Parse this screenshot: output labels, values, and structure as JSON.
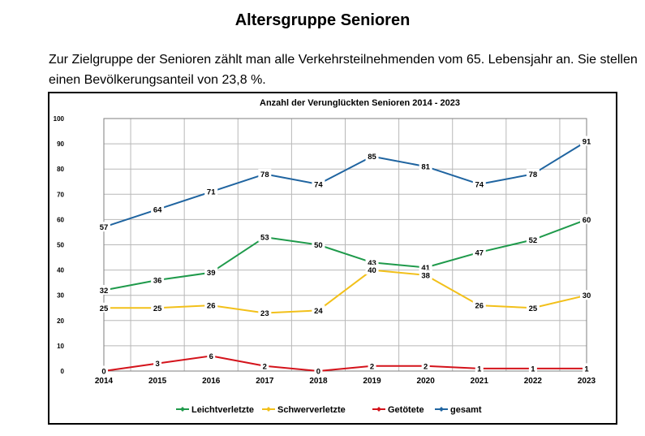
{
  "page": {
    "title": "Altersgruppe Senioren",
    "intro": "Zur Zielgruppe der Senioren zählt man alle Verkehrsteilnehmenden vom 65. Lebensjahr an. Sie stellen einen Bevölkerungsanteil von 23,8 %."
  },
  "chart_data": {
    "type": "line",
    "title": "Anzahl der Verunglückten Senioren 2014 - 2023",
    "xlabel": "",
    "ylabel": "",
    "x": [
      "2014",
      "2015",
      "2016",
      "2017",
      "2018",
      "2019",
      "2020",
      "2021",
      "2022",
      "2023"
    ],
    "ylim": [
      0,
      100
    ],
    "yticks": [
      0,
      10,
      20,
      30,
      40,
      50,
      60,
      70,
      80,
      90,
      100
    ],
    "grid": true,
    "legend_position": "bottom",
    "series": [
      {
        "name": "Leichtverletzte",
        "color": "#1f9a4b",
        "values": [
          32,
          36,
          39,
          53,
          50,
          43,
          41,
          47,
          52,
          60
        ]
      },
      {
        "name": "Schwerverletzte",
        "color": "#f2c01a",
        "values": [
          25,
          25,
          26,
          23,
          24,
          40,
          38,
          26,
          25,
          30
        ]
      },
      {
        "name": "Getötete",
        "color": "#d4131b",
        "values": [
          0,
          3,
          6,
          2,
          0,
          2,
          2,
          1,
          1,
          1
        ]
      },
      {
        "name": "gesamt",
        "color": "#1f64a0",
        "values": [
          57,
          64,
          71,
          78,
          74,
          85,
          81,
          74,
          78,
          91
        ]
      }
    ]
  }
}
